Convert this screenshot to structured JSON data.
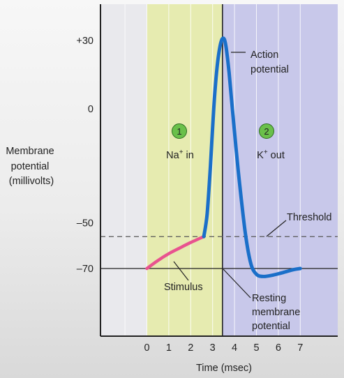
{
  "chart_data": {
    "type": "line",
    "xlabel": "Time (msec)",
    "ylabel_lines": [
      "Membrane",
      "potential",
      "(millivolts)"
    ],
    "x_ticks": [
      0,
      1,
      2,
      3,
      4,
      5,
      6,
      7
    ],
    "y_ticks": [
      {
        "value": 30,
        "label": "+30"
      },
      {
        "value": 0,
        "label": "0"
      },
      {
        "value": -50,
        "label": "–50"
      },
      {
        "value": -70,
        "label": "–70"
      }
    ],
    "xlim": [
      -1.5,
      7.5
    ],
    "ylim": [
      -100,
      50
    ],
    "zones": [
      {
        "number": "1",
        "label_main": "Na",
        "label_sup": "+",
        "label_rest": " in",
        "x_range": [
          0,
          3.45
        ],
        "color": "#e6ebb0"
      },
      {
        "number": "2",
        "label_main": "K",
        "label_sup": "+",
        "label_rest": " out",
        "x_range": [
          3.45,
          7.5
        ],
        "color": "#c8c8ea"
      }
    ],
    "series": [
      {
        "label": "Stimulus",
        "color": "#e8538f",
        "points": [
          [
            0,
            -70
          ],
          [
            0.5,
            -66.5
          ],
          [
            1.0,
            -63.5
          ],
          [
            1.5,
            -61
          ],
          [
            2.0,
            -58.6
          ],
          [
            2.6,
            -56
          ]
        ]
      },
      {
        "label": "Action potential",
        "color": "#1a6fc9",
        "points": [
          [
            2.6,
            -56
          ],
          [
            2.75,
            -46
          ],
          [
            2.9,
            -25
          ],
          [
            3.05,
            0
          ],
          [
            3.2,
            18
          ],
          [
            3.35,
            28
          ],
          [
            3.48,
            31
          ],
          [
            3.6,
            28
          ],
          [
            3.75,
            16
          ],
          [
            3.95,
            -5
          ],
          [
            4.2,
            -30
          ],
          [
            4.5,
            -55
          ],
          [
            4.75,
            -68
          ],
          [
            5.0,
            -72.5
          ],
          [
            5.3,
            -73.5
          ],
          [
            5.7,
            -73
          ],
          [
            6.2,
            -71.8
          ],
          [
            6.7,
            -70.5
          ],
          [
            7.0,
            -70
          ]
        ]
      }
    ],
    "threshold": {
      "value": -56,
      "label": "Threshold"
    },
    "resting": {
      "value": -70,
      "label_lines": [
        "Resting",
        "membrane",
        "potential"
      ]
    },
    "annotations": {
      "action_potential_lines": [
        "Action",
        "potential"
      ],
      "stimulus": "Stimulus"
    }
  }
}
